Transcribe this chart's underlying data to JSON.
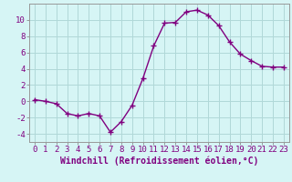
{
  "x": [
    0,
    1,
    2,
    3,
    4,
    5,
    6,
    7,
    8,
    9,
    10,
    11,
    12,
    13,
    14,
    15,
    16,
    17,
    18,
    19,
    20,
    21,
    22,
    23
  ],
  "y": [
    0.2,
    0.0,
    -0.3,
    -1.5,
    -1.8,
    -1.5,
    -1.8,
    -3.8,
    -2.5,
    -0.5,
    2.8,
    6.8,
    9.6,
    9.7,
    11.0,
    11.2,
    10.6,
    9.3,
    7.3,
    5.8,
    5.0,
    4.3,
    4.2,
    4.2
  ],
  "line_color": "#800080",
  "marker": "+",
  "marker_size": 5,
  "bg_color": "#d6f5f5",
  "grid_color": "#b0d8d8",
  "xlabel": "Windchill (Refroidissement éolien,°C)",
  "xlabel_fontsize": 7,
  "yticks": [
    -4,
    -2,
    0,
    2,
    4,
    6,
    8,
    10
  ],
  "xticks": [
    0,
    1,
    2,
    3,
    4,
    5,
    6,
    7,
    8,
    9,
    10,
    11,
    12,
    13,
    14,
    15,
    16,
    17,
    18,
    19,
    20,
    21,
    22,
    23
  ],
  "ylim": [
    -5,
    12
  ],
  "xlim": [
    -0.5,
    23.5
  ],
  "tick_fontsize": 6.5,
  "line_width": 1.0
}
